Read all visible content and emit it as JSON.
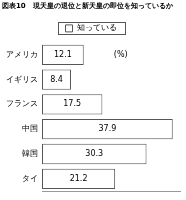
{
  "chart_data": {
    "type": "bar",
    "orientation": "horizontal",
    "title": "図表10　現天皇の退位と新天皇の即位を知っているか",
    "annotation": "(%)",
    "categories": [
      "アメリカ",
      "イギリス",
      "フランス",
      "中国",
      "韓国",
      "タイ"
    ],
    "series": [
      {
        "name": "知っている",
        "color": "#ffffff",
        "values": [
          12.1,
          8.4,
          17.5,
          37.9,
          30.3,
          21.2
        ]
      }
    ],
    "xlim": [
      0,
      40
    ],
    "grid": false,
    "legend": "top",
    "data_labels": true,
    "tick_labels": "y"
  }
}
